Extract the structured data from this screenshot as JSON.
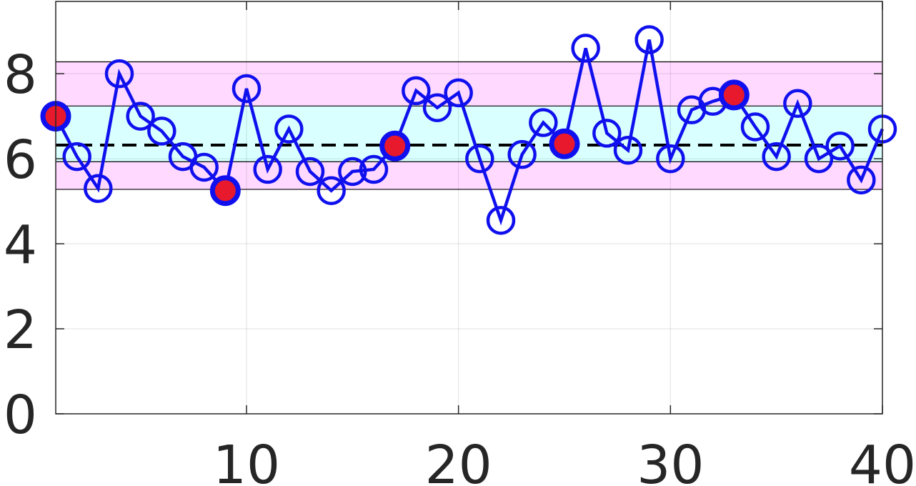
{
  "chart_data": {
    "type": "line",
    "title": "",
    "xlabel": "",
    "ylabel": "",
    "xlim": [
      1,
      40
    ],
    "ylim": [
      0,
      9.7
    ],
    "xticks": [
      10,
      20,
      30,
      40
    ],
    "yticks": [
      0,
      2,
      4,
      6,
      8
    ],
    "grid": true,
    "mean_line": 6.32,
    "bands": [
      {
        "role": "outer",
        "low": 5.28,
        "high": 8.28,
        "color": "#ffd9ff"
      },
      {
        "role": "inner",
        "low": 5.93,
        "high": 7.24,
        "color": "#d9ffff"
      }
    ],
    "series": [
      {
        "line_color": "#1010ee",
        "x": [
          1,
          2,
          3,
          4,
          5,
          6,
          7,
          8,
          9,
          10,
          11,
          12,
          13,
          14,
          15,
          16,
          17,
          18,
          19,
          20,
          21,
          22,
          23,
          24,
          25,
          26,
          27,
          28,
          29,
          30,
          31,
          32,
          33,
          34,
          35,
          36,
          37,
          38,
          39,
          40
        ],
        "values": [
          7.0,
          6.05,
          5.3,
          8.0,
          7.0,
          6.65,
          6.05,
          5.8,
          5.25,
          7.65,
          5.75,
          6.7,
          5.7,
          5.25,
          5.7,
          5.75,
          6.3,
          7.6,
          7.2,
          7.55,
          6.0,
          4.55,
          6.1,
          6.85,
          6.35,
          8.6,
          6.6,
          6.2,
          8.8,
          6.0,
          7.15,
          7.35,
          7.5,
          6.75,
          6.05,
          7.3,
          6.0,
          6.3,
          5.5,
          6.7
        ],
        "highlighted_x": [
          1,
          9,
          17,
          25,
          33
        ],
        "highlight_fill": "#e8192c"
      }
    ]
  }
}
